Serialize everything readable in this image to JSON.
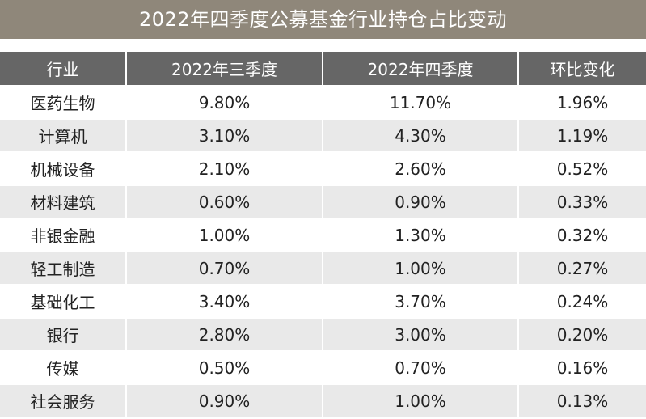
{
  "title": "2022年四季度公募基金行业持仓占比变动",
  "table": {
    "headers": [
      "行业",
      "2022年三季度",
      "2022年四季度",
      "环比变化"
    ],
    "rows": [
      [
        "医药生物",
        "9.80%",
        "11.70%",
        "1.96%"
      ],
      [
        "计算机",
        "3.10%",
        "4.30%",
        "1.19%"
      ],
      [
        "机械设备",
        "2.10%",
        "2.60%",
        "0.52%"
      ],
      [
        "材料建筑",
        "0.60%",
        "0.90%",
        "0.33%"
      ],
      [
        "非银金融",
        "1.00%",
        "1.30%",
        "0.32%"
      ],
      [
        "轻工制造",
        "0.70%",
        "1.00%",
        "0.27%"
      ],
      [
        "基础化工",
        "3.40%",
        "3.70%",
        "0.24%"
      ],
      [
        "银行",
        "2.80%",
        "3.00%",
        "0.20%"
      ],
      [
        "传媒",
        "0.50%",
        "0.70%",
        "0.16%"
      ],
      [
        "社会服务",
        "0.90%",
        "1.00%",
        "0.13%"
      ]
    ]
  },
  "colors": {
    "title_bg": "#8f877a",
    "header_bg": "#666666",
    "stripe_bg": "#e9e9e9"
  }
}
